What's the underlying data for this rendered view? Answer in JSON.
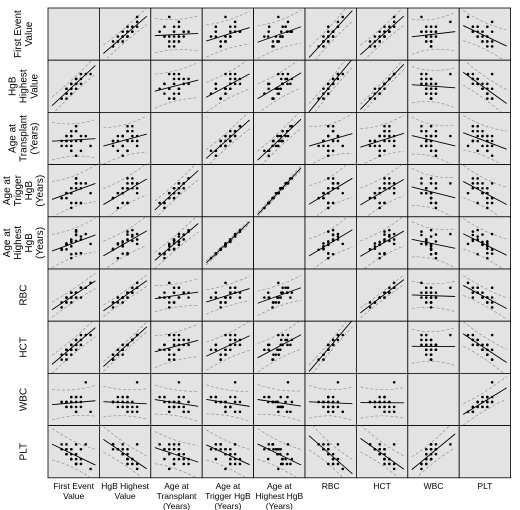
{
  "chart_data": {
    "type": "scatter_matrix",
    "column_labels": [
      [
        "First Event",
        "Value"
      ],
      [
        "HgB Highest",
        "Value"
      ],
      [
        "Age at",
        "Transplant",
        "(Years)"
      ],
      [
        "Age at",
        "Trigger HgB",
        "(Years)"
      ],
      [
        "Age at",
        "Highest HgB",
        "(Years)"
      ],
      [
        "RBC"
      ],
      [
        "HCT"
      ],
      [
        "WBC"
      ],
      [
        "PLT"
      ]
    ],
    "row_labels": [
      [
        "First Event",
        "Value"
      ],
      [
        "HgB",
        "Highest",
        "Value"
      ],
      [
        "Age at",
        "Transplant",
        "(Years)"
      ],
      [
        "Age at",
        "Trigger",
        "HgB",
        "(Years)"
      ],
      [
        "Age at",
        "Highest",
        "HgB",
        "(Years)"
      ],
      [
        "RBC"
      ],
      [
        "HCT"
      ],
      [
        "WBC"
      ],
      [
        "PLT"
      ]
    ],
    "lim": [
      1,
      10
    ],
    "fit_line": true,
    "confidence_band": true,
    "variables": [
      {
        "values": [
          3,
          4,
          5,
          6,
          5,
          4,
          7,
          6,
          5,
          3,
          8,
          6,
          5,
          4,
          6,
          7,
          5,
          6,
          4,
          5,
          9,
          6,
          5,
          7,
          4
        ]
      },
      {
        "values": [
          3,
          5,
          5,
          7,
          6,
          4,
          7,
          5,
          6,
          3,
          8,
          7,
          4,
          5,
          6,
          8,
          5,
          6,
          3,
          5,
          8,
          7,
          6,
          6,
          4
        ]
      },
      {
        "values": [
          5,
          4,
          6,
          7,
          3,
          5,
          6,
          2,
          7,
          4,
          6,
          5,
          3,
          6,
          8,
          5,
          4,
          7,
          5,
          6,
          4,
          8,
          5,
          3,
          6
        ]
      },
      {
        "values": [
          4,
          5,
          6,
          7,
          3,
          5,
          7,
          3,
          6,
          4,
          7,
          6,
          2,
          5,
          8,
          6,
          5,
          7,
          4,
          6,
          5,
          8,
          6,
          3,
          5
        ]
      },
      {
        "values": [
          4.3,
          5.2,
          5.8,
          7.1,
          3.2,
          5.4,
          6.8,
          3.3,
          6.2,
          4.1,
          7.3,
          5.9,
          2.4,
          5.1,
          7.8,
          6.2,
          4.8,
          7.2,
          4.2,
          5.7,
          5.3,
          8.1,
          6.1,
          3.4,
          5.2
        ]
      },
      {
        "values": [
          4,
          5,
          5,
          6,
          6,
          4,
          7,
          5,
          6,
          3,
          7,
          6,
          5,
          5,
          5,
          7,
          4,
          6,
          4,
          5,
          8,
          6,
          6,
          5,
          5
        ]
      },
      {
        "values": [
          4,
          5,
          6,
          7,
          6,
          4,
          7,
          5,
          6,
          3,
          8,
          7,
          5,
          5,
          6,
          8,
          4,
          6,
          3,
          5,
          8,
          7,
          6,
          6,
          5
        ]
      },
      {
        "values": [
          5,
          4,
          6,
          3,
          5,
          4,
          5,
          6,
          4,
          5,
          9,
          4,
          6,
          5,
          3,
          4,
          5,
          6,
          5,
          4,
          3,
          5,
          4,
          6,
          5
        ]
      },
      {
        "values": [
          6,
          5,
          6,
          3,
          4,
          6,
          4,
          7,
          4,
          7,
          7,
          3,
          6,
          5,
          3,
          3,
          6,
          5,
          7,
          5,
          2,
          4,
          4,
          6,
          6
        ]
      }
    ]
  }
}
